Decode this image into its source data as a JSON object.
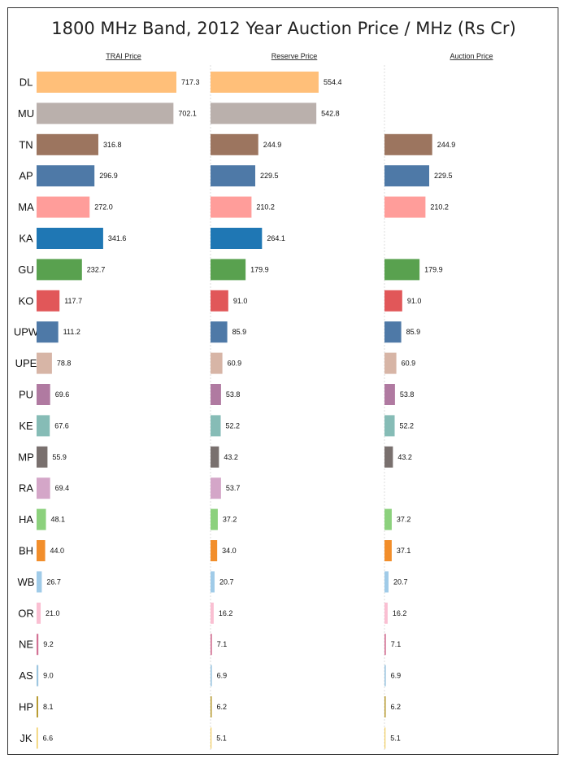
{
  "chart_data": {
    "type": "bar",
    "orientation": "horizontal",
    "title": "1800 MHz Band, 2012 Year Auction Price / MHz (Rs Cr)",
    "categories": [
      "DL",
      "MU",
      "TN",
      "AP",
      "MA",
      "KA",
      "GU",
      "KO",
      "UPW",
      "UPE",
      "PU",
      "KE",
      "MP",
      "RA",
      "HA",
      "BH",
      "WB",
      "OR",
      "NE",
      "AS",
      "HP",
      "JK"
    ],
    "colors": [
      "#FFBF79",
      "#BAB0AC",
      "#9C755F",
      "#4E79A7",
      "#FF9D9A",
      "#1F77B4",
      "#59A14F",
      "#E15759",
      "#4E79A7",
      "#D7B5A6",
      "#B07AA1",
      "#86BCB6",
      "#79706E",
      "#D4A6C8",
      "#8CD17D",
      "#F28E2B",
      "#A0CBE8",
      "#FABFD2",
      "#D37295",
      "#9DC6E0",
      "#B6992D",
      "#F1CE63"
    ],
    "series": [
      {
        "name": "TRAI Price",
        "values": [
          717.3,
          702.1,
          316.8,
          296.9,
          272.0,
          341.6,
          232.7,
          117.7,
          111.2,
          78.8,
          69.6,
          67.6,
          55.9,
          69.4,
          48.1,
          44.0,
          26.7,
          21.0,
          9.2,
          9.0,
          8.1,
          6.6
        ]
      },
      {
        "name": "Reserve Price",
        "values": [
          554.4,
          542.8,
          244.9,
          229.5,
          210.2,
          264.1,
          179.9,
          91.0,
          85.9,
          60.9,
          53.8,
          52.2,
          43.2,
          53.7,
          37.2,
          34.0,
          20.7,
          16.2,
          7.1,
          6.9,
          6.2,
          5.1
        ]
      },
      {
        "name": "Auction Price",
        "values": [
          null,
          null,
          244.9,
          229.5,
          210.2,
          null,
          179.9,
          91.0,
          85.9,
          60.9,
          53.8,
          52.2,
          43.2,
          null,
          37.2,
          37.1,
          20.7,
          16.2,
          7.1,
          6.9,
          6.2,
          5.1
        ]
      }
    ],
    "value_format": "0.0",
    "gridlines": false,
    "legend": "none"
  }
}
